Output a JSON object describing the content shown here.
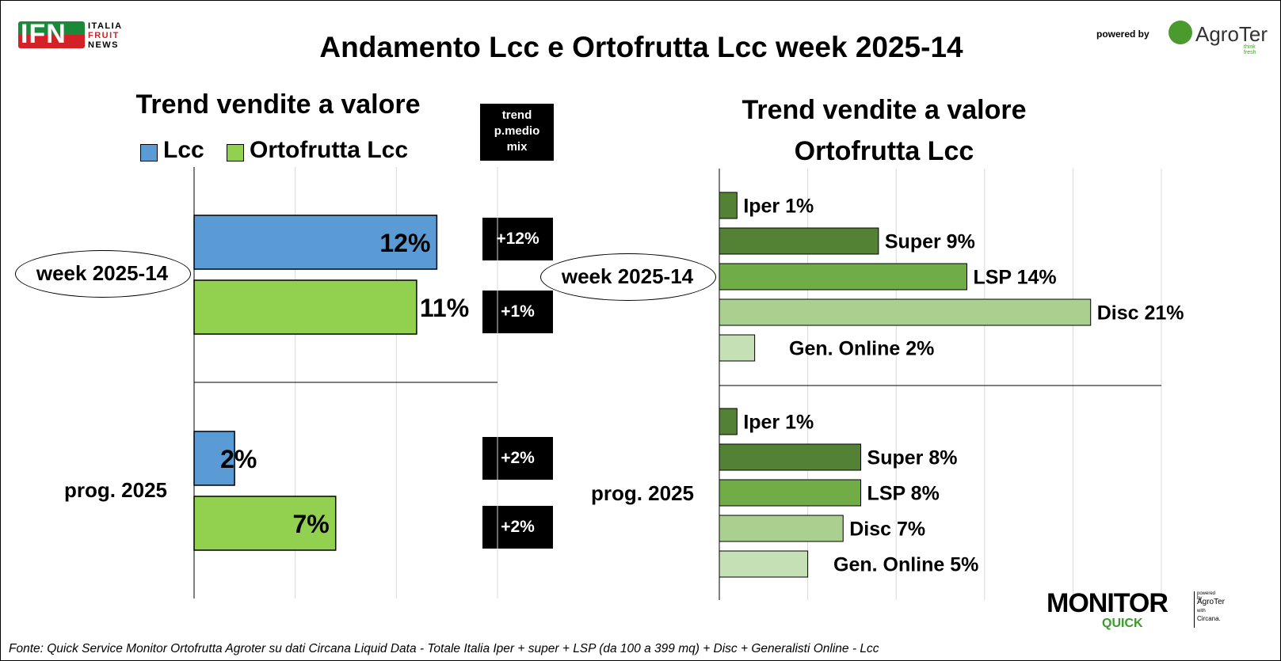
{
  "title": "Andamento Lcc e Ortofrutta Lcc week 2025-14",
  "logo_ifn": {
    "main": "IFN",
    "side": [
      "ITALIA",
      "FRUIT",
      "NEWS"
    ]
  },
  "powered_by": "powered by",
  "agroter": {
    "name": "AgroTer",
    "tagline": "think fresh"
  },
  "monitor": {
    "word": "MONITOR",
    "sub": "QUICK",
    "powered": "powered by",
    "with": "with",
    "agroter": "AgroTer",
    "circana": "Circana."
  },
  "trend_header": "trend\np.medio\nmix",
  "colors": {
    "lcc": "#5b9bd5",
    "ortofrutta": "#92d050",
    "iper": "#548235",
    "super": "#548235",
    "lsp": "#70ad47",
    "disc": "#a9d08e",
    "online": "#c5e0b4"
  },
  "footer": "Fonte: Quick Service Monitor Ortofrutta Agroter su dati Circana Liquid Data - Totale Italia Iper + super + LSP (da 100 a 399 mq) + Disc + Generalisti Online - Lcc",
  "chart_data": [
    {
      "type": "bar",
      "title": "Trend vendite a valore",
      "orientation": "horizontal",
      "categories": [
        "week 2025-14",
        "prog. 2025"
      ],
      "series": [
        {
          "name": "Lcc",
          "values": [
            12,
            2
          ],
          "labels": [
            "12%",
            "2%"
          ]
        },
        {
          "name": "Ortofrutta Lcc",
          "values": [
            11,
            7
          ],
          "labels": [
            "11%",
            "7%"
          ]
        }
      ],
      "xlim": [
        0,
        15
      ],
      "legend": "top",
      "grid": true,
      "trend_p_medio_mix": [
        "+12%",
        "+1%",
        "+2%",
        "+2%"
      ]
    },
    {
      "type": "bar",
      "title": "Trend vendite a valore\nOrtofrutta Lcc",
      "orientation": "horizontal",
      "groups": [
        {
          "category": "week 2025-14",
          "bars": [
            {
              "name": "Iper",
              "value": 1,
              "label": "Iper 1%"
            },
            {
              "name": "Super",
              "value": 9,
              "label": "Super 9%"
            },
            {
              "name": "LSP",
              "value": 14,
              "label": "LSP 14%"
            },
            {
              "name": "Disc",
              "value": 21,
              "label": "Disc 21%"
            },
            {
              "name": "Gen. Online",
              "value": 2,
              "label": "Gen. Online 2%"
            }
          ]
        },
        {
          "category": "prog. 2025",
          "bars": [
            {
              "name": "Iper",
              "value": 1,
              "label": "Iper 1%"
            },
            {
              "name": "Super",
              "value": 8,
              "label": "Super 8%"
            },
            {
              "name": "LSP",
              "value": 8,
              "label": "LSP 8%"
            },
            {
              "name": "Disc",
              "value": 7,
              "label": "Disc 7%"
            },
            {
              "name": "Gen. Online",
              "value": 5,
              "label": "Gen. Online 5%"
            }
          ]
        }
      ],
      "xlim": [
        0,
        25
      ],
      "grid": true
    }
  ]
}
